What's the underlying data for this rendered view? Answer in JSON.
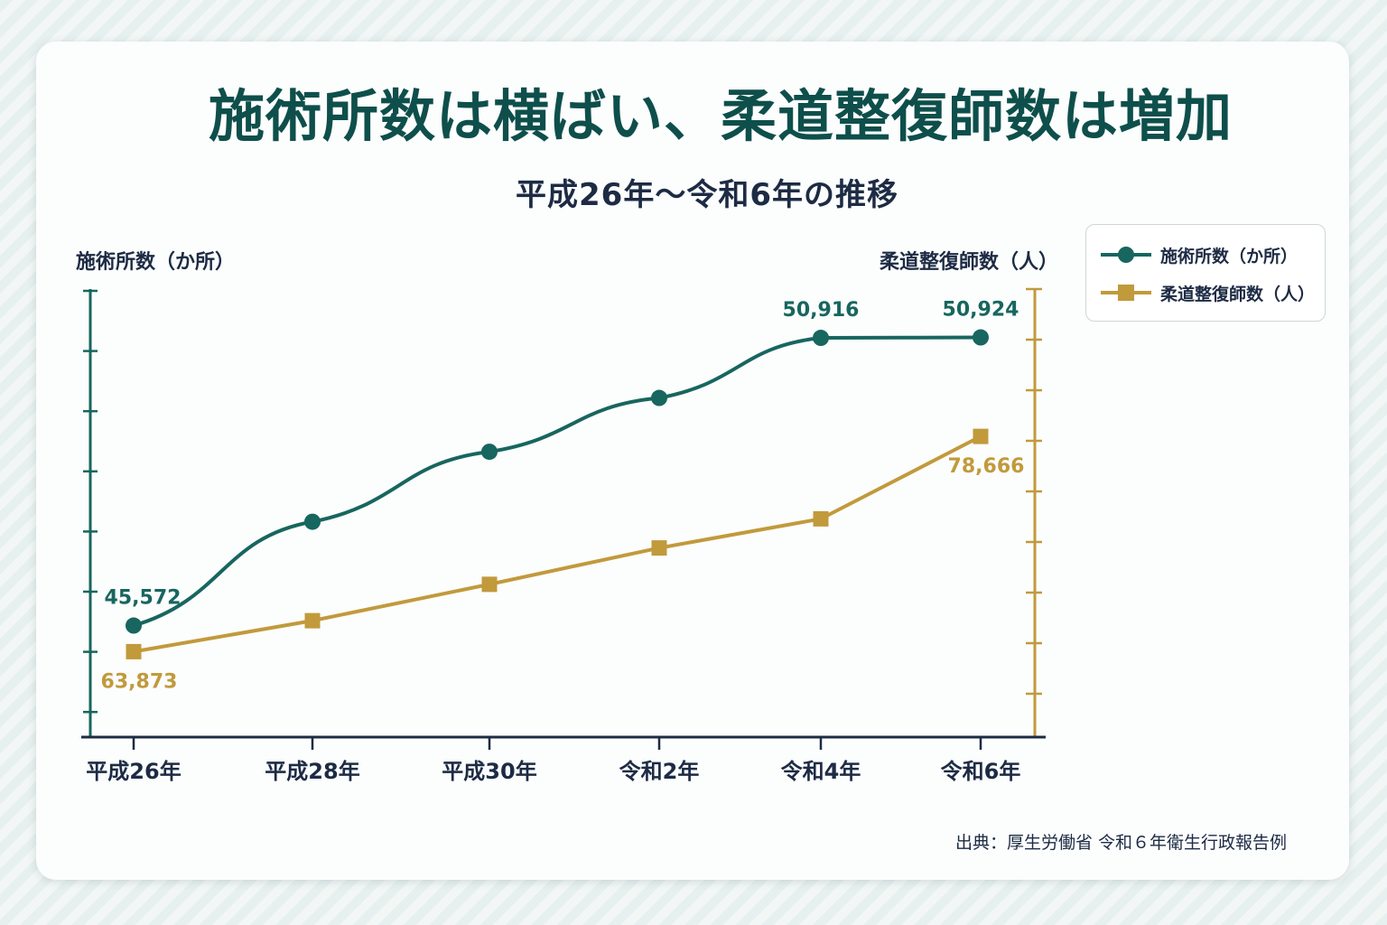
{
  "chart_data": {
    "type": "line",
    "title": "施術所数は横ばい、柔道整復師数は増加",
    "subtitle": "平成26年～令和6年の推移",
    "categories": [
      "平成26年",
      "平成28年",
      "平成30年",
      "令和2年",
      "令和4年",
      "令和6年"
    ],
    "left_axis_title": "施術所数（か所）",
    "right_axis_title": "柔道整復師数（人）",
    "series": [
      {
        "name": "施術所数（か所）",
        "axis": "left",
        "color": "#17665f",
        "marker": "circle",
        "values": [
          45572,
          47500,
          48800,
          49800,
          50916,
          50924
        ],
        "labels": [
          "45,572",
          "",
          "",
          "",
          "50,916",
          "50,924"
        ]
      },
      {
        "name": "柔道整復師数（人）",
        "axis": "right",
        "color": "#c19a3c",
        "marker": "square",
        "values": [
          63873,
          66000,
          68500,
          71000,
          73000,
          78666
        ],
        "labels": [
          "63,873",
          "",
          "",
          "",
          "",
          "78,666"
        ]
      }
    ],
    "ylim_left": [
      43500,
      53500
    ],
    "ylim_right": [
      58000,
      95000
    ],
    "grid": false,
    "legend_position": "top-right"
  },
  "source": "出典：厚生労働省 令和６年衛生行政報告例"
}
